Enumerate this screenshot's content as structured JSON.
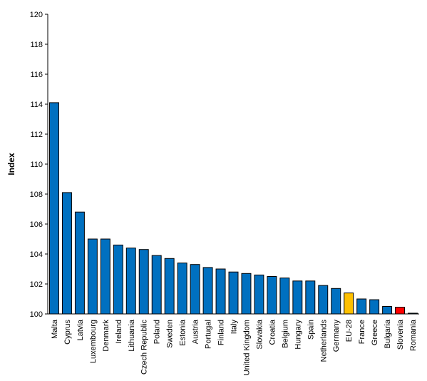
{
  "chart_data": {
    "type": "bar",
    "title": "",
    "xlabel": "",
    "ylabel": "Index",
    "ylim": [
      100,
      120
    ],
    "ytick_step": 2,
    "grid": false,
    "legend": "none",
    "categories": [
      "Malta",
      "Cyprus",
      "Latvia",
      "Luxembourg",
      "Denmark",
      "Ireland",
      "Lithuania",
      "Czech Republic",
      "Poland",
      "Sweden",
      "Estonia",
      "Austria",
      "Portugal",
      "Finland",
      "Italy",
      "United Kingdom",
      "Slovakia",
      "Croatia",
      "Belgium",
      "Hungary",
      "Spain",
      "Netherlands",
      "Germany",
      "EU-28",
      "France",
      "Greece",
      "Bulgaria",
      "Slovenia",
      "Romania"
    ],
    "values": [
      114.1,
      108.1,
      106.8,
      105.0,
      105.0,
      104.6,
      104.4,
      104.3,
      103.9,
      103.7,
      103.4,
      103.3,
      103.1,
      103.0,
      102.8,
      102.7,
      102.6,
      102.5,
      102.4,
      102.2,
      102.2,
      101.9,
      101.7,
      101.4,
      101.0,
      100.95,
      100.5,
      100.45,
      100.05
    ],
    "colors": {
      "default": "#0070C0",
      "highlight_eu": "#FFC000",
      "highlight_si": "#FF0000",
      "edge": "#000000"
    },
    "highlight": {
      "EU-28": "#FFC000",
      "Slovenia": "#FF0000"
    }
  }
}
